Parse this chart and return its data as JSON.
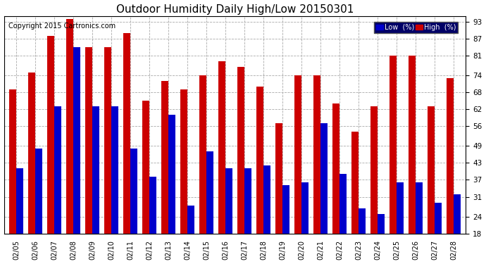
{
  "title": "Outdoor Humidity Daily High/Low 20150301",
  "copyright": "Copyright 2015 Cartronics.com",
  "dates": [
    "02/05",
    "02/06",
    "02/07",
    "02/08",
    "02/09",
    "02/10",
    "02/11",
    "02/12",
    "02/13",
    "02/14",
    "02/15",
    "02/16",
    "02/17",
    "02/18",
    "02/19",
    "02/20",
    "02/21",
    "02/22",
    "02/23",
    "02/24",
    "02/25",
    "02/26",
    "02/27",
    "02/28"
  ],
  "high": [
    69,
    75,
    88,
    94,
    84,
    84,
    89,
    65,
    72,
    69,
    74,
    79,
    77,
    70,
    57,
    74,
    74,
    64,
    54,
    63,
    81,
    81,
    63,
    73
  ],
  "low": [
    41,
    48,
    63,
    84,
    63,
    63,
    48,
    38,
    60,
    28,
    47,
    41,
    41,
    42,
    35,
    36,
    57,
    39,
    27,
    25,
    36,
    36,
    29,
    32
  ],
  "ymin": 18,
  "ymax": 95,
  "yticks": [
    18,
    24,
    31,
    37,
    43,
    49,
    56,
    62,
    68,
    74,
    81,
    87,
    93
  ],
  "bar_width": 0.38,
  "low_color": "#0000cc",
  "high_color": "#cc0000",
  "bg_color": "#ffffff",
  "grid_color": "#aaaaaa",
  "title_fontsize": 11,
  "copyright_fontsize": 7,
  "legend_low_label": "Low  (%)",
  "legend_high_label": "High  (%)"
}
